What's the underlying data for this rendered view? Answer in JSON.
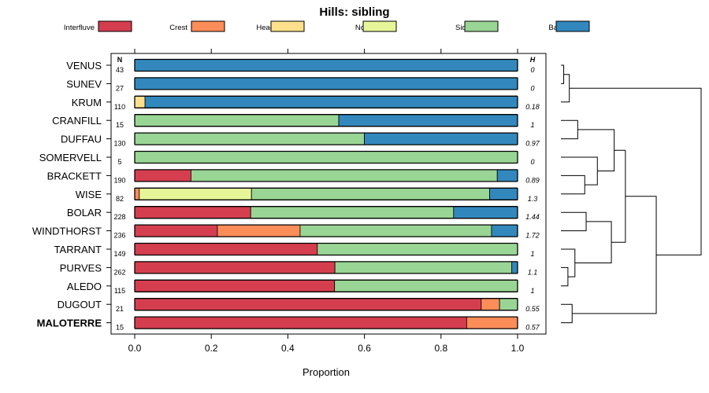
{
  "chart_data": {
    "type": "bar",
    "stacked": true,
    "orientation": "horizontal",
    "title": "Hills: sibling",
    "xlabel": "Proportion",
    "xlim": [
      0,
      1
    ],
    "x_ticks": [
      "0.0",
      "0.2",
      "0.4",
      "0.6",
      "0.8",
      "1.0"
    ],
    "x_tick_values": [
      0,
      0.2,
      0.4,
      0.6,
      0.8,
      1.0
    ],
    "n_header": "N",
    "h_header": "H",
    "legend": [
      {
        "name": "Interfluve",
        "color": "#d53e4f"
      },
      {
        "name": "Crest",
        "color": "#fc8d59"
      },
      {
        "name": "Head Slope",
        "color": "#fee08b"
      },
      {
        "name": "Nose Slope",
        "color": "#e6f598"
      },
      {
        "name": "Side Slope",
        "color": "#99d594"
      },
      {
        "name": "Base Slope",
        "color": "#3288bd"
      }
    ],
    "rows": [
      {
        "name": "VENUS",
        "n": "43",
        "h": "0",
        "bold": false,
        "values": [
          0,
          0,
          0,
          0,
          0,
          1.0
        ]
      },
      {
        "name": "SUNEV",
        "n": "27",
        "h": "0",
        "bold": false,
        "values": [
          0,
          0,
          0,
          0,
          0,
          1.0
        ]
      },
      {
        "name": "KRUM",
        "n": "110",
        "h": "0.18",
        "bold": false,
        "values": [
          0,
          0,
          0.027,
          0,
          0,
          0.973
        ]
      },
      {
        "name": "CRANFILL",
        "n": "15",
        "h": "1",
        "bold": false,
        "values": [
          0,
          0,
          0,
          0,
          0.533,
          0.467
        ]
      },
      {
        "name": "DUFFAU",
        "n": "130",
        "h": "0.97",
        "bold": false,
        "values": [
          0,
          0,
          0,
          0,
          0.6,
          0.4
        ]
      },
      {
        "name": "SOMERVELL",
        "n": "5",
        "h": "0",
        "bold": false,
        "values": [
          0,
          0,
          0,
          0,
          1.0,
          0
        ]
      },
      {
        "name": "BRACKETT",
        "n": "190",
        "h": "0.89",
        "bold": false,
        "values": [
          0.147,
          0,
          0,
          0,
          0.8,
          0.053
        ]
      },
      {
        "name": "WISE",
        "n": "82",
        "h": "1.3",
        "bold": false,
        "values": [
          0,
          0.012,
          0,
          0.293,
          0.622,
          0.073
        ]
      },
      {
        "name": "BOLAR",
        "n": "228",
        "h": "1.44",
        "bold": false,
        "values": [
          0.303,
          0,
          0,
          0,
          0.53,
          0.167
        ]
      },
      {
        "name": "WINDTHORST",
        "n": "236",
        "h": "1.72",
        "bold": false,
        "values": [
          0.216,
          0.216,
          0,
          0,
          0.5,
          0.068
        ]
      },
      {
        "name": "TARRANT",
        "n": "149",
        "h": "1",
        "bold": false,
        "values": [
          0.477,
          0,
          0,
          0,
          0.523,
          0
        ]
      },
      {
        "name": "PURVES",
        "n": "262",
        "h": "1.1",
        "bold": false,
        "values": [
          0.523,
          0,
          0,
          0,
          0.462,
          0.015
        ]
      },
      {
        "name": "ALEDO",
        "n": "115",
        "h": "1",
        "bold": false,
        "values": [
          0.522,
          0,
          0,
          0,
          0.478,
          0
        ]
      },
      {
        "name": "DUGOUT",
        "n": "21",
        "h": "0.55",
        "bold": false,
        "values": [
          0.905,
          0.048,
          0,
          0,
          0.047,
          0
        ]
      },
      {
        "name": "MALOTERRE",
        "n": "15",
        "h": "0.57",
        "bold": true,
        "values": [
          0.867,
          0.133,
          0,
          0,
          0,
          0
        ]
      }
    ],
    "dendrogram": {
      "labels": [
        "VENUS",
        "SUNEV",
        "KRUM",
        "CRANFILL",
        "DUFFAU",
        "SOMERVELL",
        "BRACKETT",
        "WISE",
        "BOLAR",
        "WINDTHORST",
        "TARRANT",
        "PURVES",
        "ALEDO",
        "DUGOUT",
        "MALOTERRE"
      ],
      "merges": [
        [
          -1,
          -2,
          0.02
        ],
        [
          -3,
          1,
          0.06
        ],
        [
          -4,
          -5,
          0.12
        ],
        [
          -7,
          -8,
          0.17
        ],
        [
          -6,
          4,
          0.26
        ],
        [
          -9,
          -10,
          0.18
        ],
        [
          -12,
          -13,
          0.05
        ],
        [
          -11,
          7,
          0.1
        ],
        [
          -14,
          -15,
          0.08
        ],
        [
          3,
          5,
          0.38
        ],
        [
          6,
          8,
          0.36
        ],
        [
          10,
          11,
          0.46
        ],
        [
          12,
          9,
          0.68
        ],
        [
          2,
          13,
          1.0
        ]
      ],
      "max_height": 1.0
    }
  }
}
